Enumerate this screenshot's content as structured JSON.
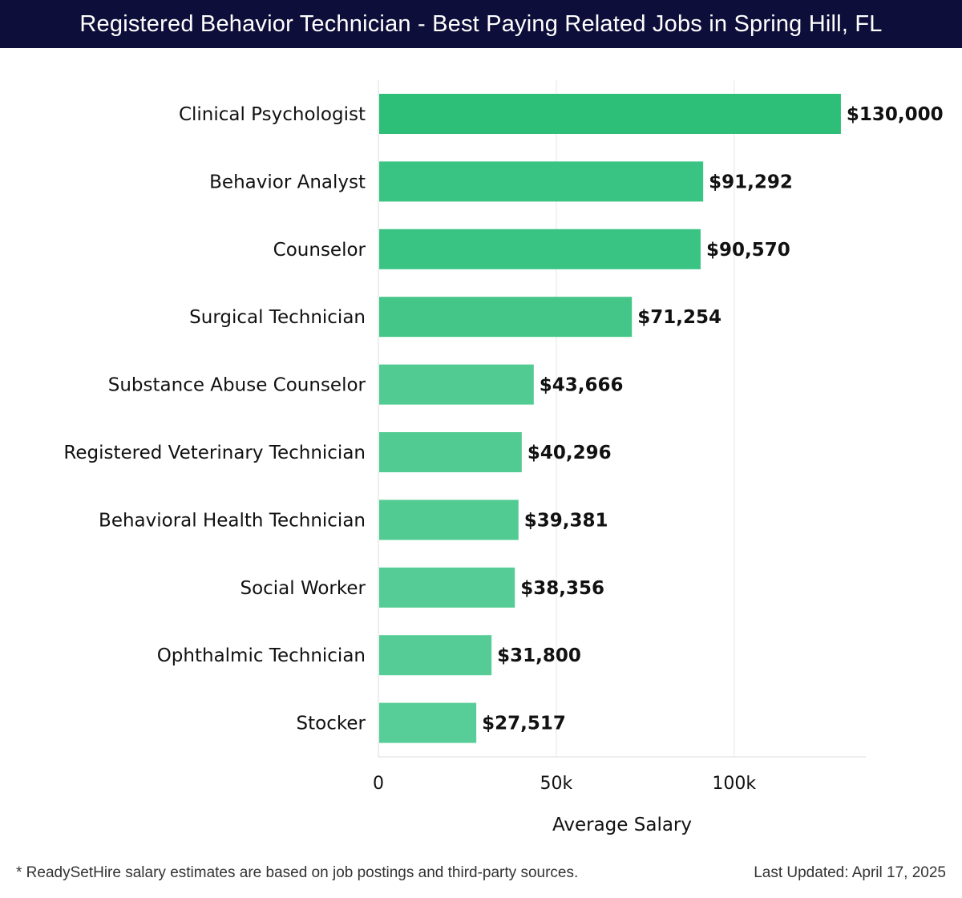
{
  "header": {
    "title": "Registered Behavior Technician - Best Paying Related Jobs in Spring Hill, FL"
  },
  "chart_data": {
    "type": "bar",
    "orientation": "horizontal",
    "title": "Registered Behavior Technician - Best Paying Related Jobs in Spring Hill, FL",
    "xlabel": "Average Salary",
    "ylabel": "",
    "xlim": [
      0,
      137000
    ],
    "xticks": [
      0,
      50000,
      100000
    ],
    "xtick_labels": [
      "0",
      "50k",
      "100k"
    ],
    "grid": true,
    "categories": [
      "Clinical Psychologist",
      "Behavior Analyst",
      "Counselor",
      "Surgical Technician",
      "Substance Abuse Counselor",
      "Registered Veterinary Technician",
      "Behavioral Health Technician",
      "Social Worker",
      "Ophthalmic Technician",
      "Stocker"
    ],
    "values": [
      130000,
      91292,
      90570,
      71254,
      43666,
      40296,
      39381,
      38356,
      31800,
      27517
    ],
    "value_labels": [
      "$130,000",
      "$91,292",
      "$90,570",
      "$71,254",
      "$43,666",
      "$40,296",
      "$39,381",
      "$38,356",
      "$31,800",
      "$27,517"
    ],
    "colors": [
      "#2dbe78",
      "#3ac483",
      "#3ac483",
      "#44c688",
      "#52cb92",
      "#52cb92",
      "#52cb92",
      "#55cc95",
      "#55cc95",
      "#57cd97"
    ]
  },
  "footer": {
    "note": "* ReadySetHire salary estimates are based on job postings and third-party sources.",
    "updated": "Last Updated: April 17, 2025"
  }
}
